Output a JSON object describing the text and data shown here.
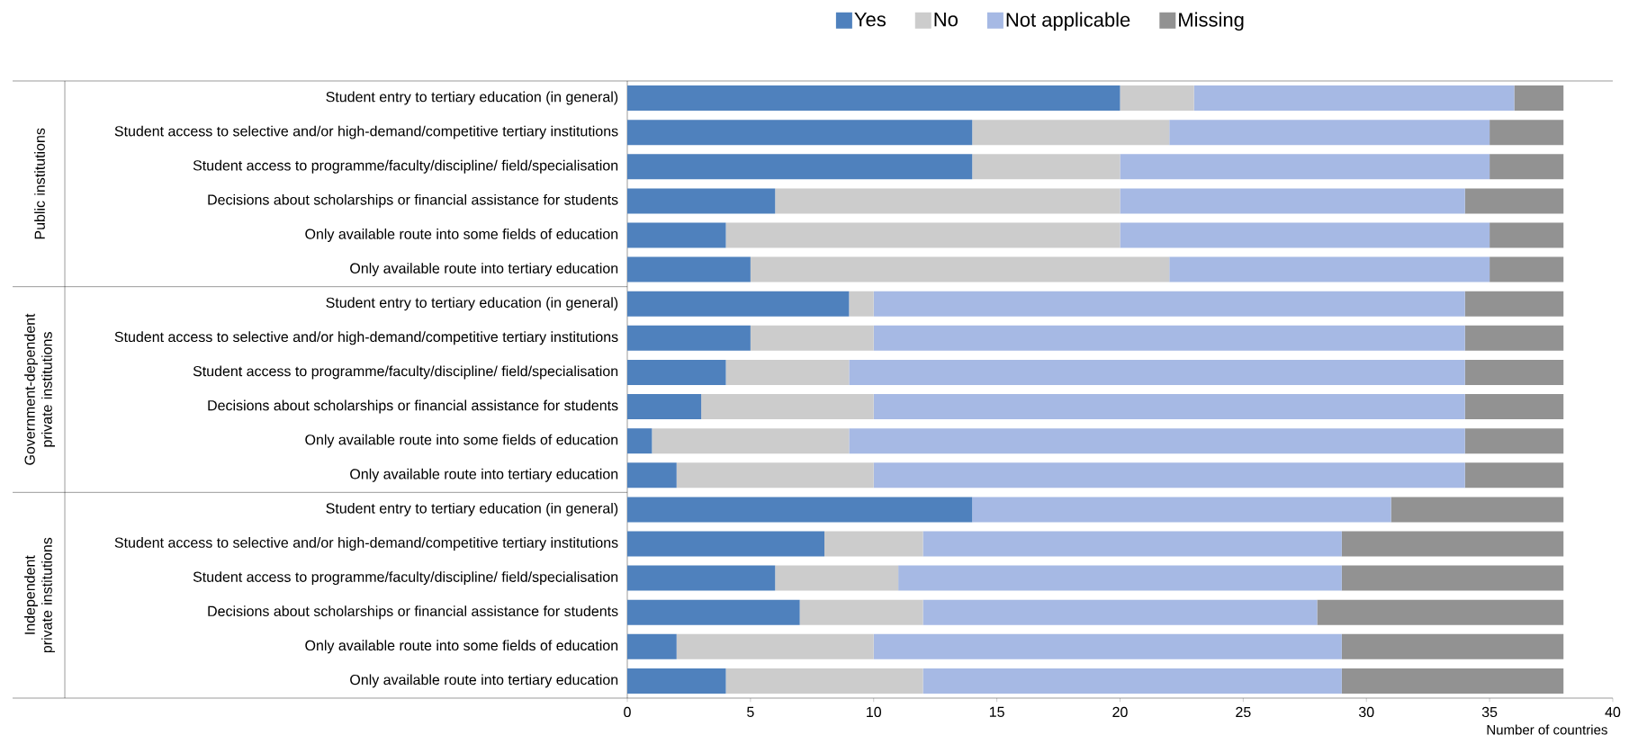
{
  "chart_data": {
    "type": "bar",
    "orientation": "horizontal",
    "stacked": true,
    "legend": "top",
    "xlabel": "Number of countries",
    "categories": [
      "Student entry to tertiary education (in general)",
      "Student access to selective and/or high-demand/competitive tertiary institutions",
      "Student access to programme/faculty/discipline/ field/specialisation",
      "Decisions about scholarships or financial assistance for students",
      "Only available route into some fields of education",
      "Only available route into tertiary education",
      "Student entry to tertiary education (in general)",
      "Student access to selective and/or high-demand/competitive tertiary institutions",
      "Student access to programme/faculty/discipline/ field/specialisation",
      "Decisions about scholarships or financial assistance for students",
      "Only available route into some fields of education",
      "Only available route into tertiary education",
      "Student entry to tertiary education (in general)",
      "Student access to selective and/or high-demand/competitive tertiary institutions",
      "Student access to programme/faculty/discipline/ field/specialisation",
      "Decisions about scholarships or financial assistance for students",
      "Only available route into some fields of education",
      "Only available route into tertiary education"
    ],
    "series": [
      {
        "name": "Yes",
        "color": "#4f81bd",
        "values": [
          20,
          14,
          14,
          6,
          4,
          5,
          9,
          5,
          4,
          3,
          1,
          2,
          14,
          8,
          6,
          7,
          2,
          4
        ]
      },
      {
        "name": "No",
        "color": "#cccccc",
        "values": [
          3,
          8,
          6,
          14,
          16,
          17,
          1,
          5,
          5,
          7,
          8,
          8,
          0,
          4,
          5,
          5,
          8,
          8
        ]
      },
      {
        "name": "Not applicable",
        "color": "#a6b9e4",
        "values": [
          13,
          13,
          15,
          14,
          15,
          13,
          24,
          24,
          25,
          24,
          25,
          24,
          17,
          17,
          18,
          16,
          19,
          17
        ]
      },
      {
        "name": "Missing",
        "color": "#929292",
        "values": [
          2,
          3,
          3,
          4,
          3,
          3,
          4,
          4,
          4,
          4,
          4,
          4,
          7,
          9,
          9,
          10,
          9,
          9
        ]
      }
    ],
    "annotations": [
      "Public institutions",
      "Government-dependent private institutions",
      "Independent private institutions"
    ],
    "xlim": [
      0,
      40
    ],
    "xticks": [
      0,
      5,
      10,
      15,
      20,
      25,
      30,
      35,
      40
    ]
  }
}
